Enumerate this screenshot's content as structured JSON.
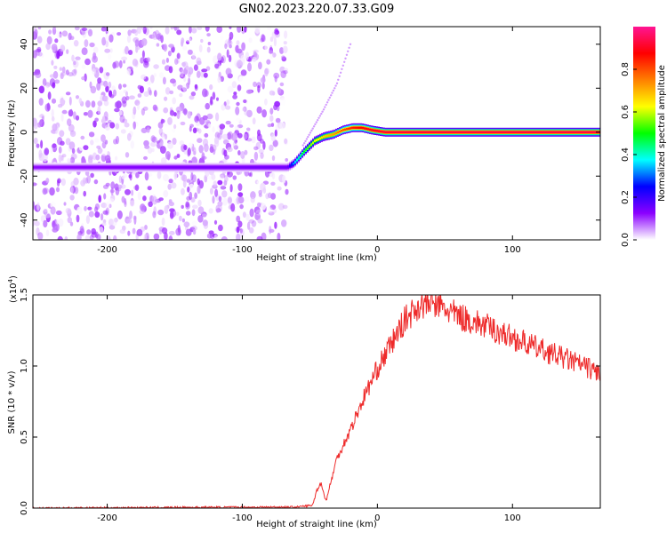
{
  "figure": {
    "title": "GN02.2023.220.07.33.G09"
  },
  "chart_data": [
    {
      "type": "heatmap",
      "xlabel": "Height of straight line (km)",
      "ylabel": "Frequency (Hz)",
      "xlim": [
        -255,
        165
      ],
      "ylim": [
        -49,
        48
      ],
      "x_ticks": [
        -200,
        -100,
        0,
        100
      ],
      "y_ticks": [
        -40,
        -20,
        0,
        20,
        40
      ],
      "grid": false,
      "colorbar": {
        "label": "Normalized spectral amplitude",
        "range": [
          0.0,
          1.0
        ],
        "ticks": [
          "0.0",
          "0.2",
          "0.4",
          "0.6",
          "0.8"
        ],
        "colormap": [
          "#ffffff",
          "#8b00ff",
          "#0000ff",
          "#00ffff",
          "#00ff00",
          "#ffff00",
          "#ff7f00",
          "#ff0000",
          "#ff1493"
        ]
      },
      "noise_region_x": [
        -255,
        -67
      ],
      "noise_peak_amplitude": 0.12,
      "ridge": {
        "x": [
          -255,
          -67,
          -62,
          -55,
          -47,
          -40,
          -33,
          -26,
          -19,
          -12,
          -5,
          5,
          165
        ],
        "y": [
          -16,
          -16,
          -14,
          -9,
          -4,
          -2,
          -1,
          1,
          2,
          2,
          1,
          0,
          0
        ],
        "amplitude": [
          0.12,
          0.15,
          0.35,
          0.5,
          0.62,
          0.68,
          0.72,
          0.8,
          0.85,
          0.88,
          0.9,
          0.92,
          0.93
        ]
      },
      "faint_trace": {
        "x": [
          -55,
          -40,
          -30,
          -20
        ],
        "y": [
          -6,
          10,
          22,
          40
        ],
        "amplitude": 0.08
      }
    },
    {
      "type": "line",
      "xlabel": "Height of straight line (km)",
      "ylabel": "SNR (10 * v/v)",
      "y_multiplier_label": "(x10",
      "y_multiplier_exp": "4",
      "xlim": [
        -255,
        165
      ],
      "ylim": [
        0,
        1.5
      ],
      "x_ticks": [
        -200,
        -100,
        0,
        100
      ],
      "y_ticks": [
        "0.0",
        "0.5",
        "1.0",
        "1.5"
      ],
      "grid": false,
      "series": [
        {
          "color": "#ee2a2a",
          "x": [
            -255,
            -150,
            -60,
            -48,
            -45,
            -42,
            -38,
            -30,
            -20,
            -10,
            0,
            10,
            20,
            30,
            40,
            50,
            60,
            80,
            100,
            120,
            140,
            165
          ],
          "y": [
            0.0,
            0.005,
            0.008,
            0.02,
            0.12,
            0.18,
            0.05,
            0.35,
            0.55,
            0.78,
            0.98,
            1.15,
            1.32,
            1.42,
            1.45,
            1.4,
            1.35,
            1.28,
            1.2,
            1.12,
            1.05,
            0.95
          ]
        }
      ]
    }
  ]
}
